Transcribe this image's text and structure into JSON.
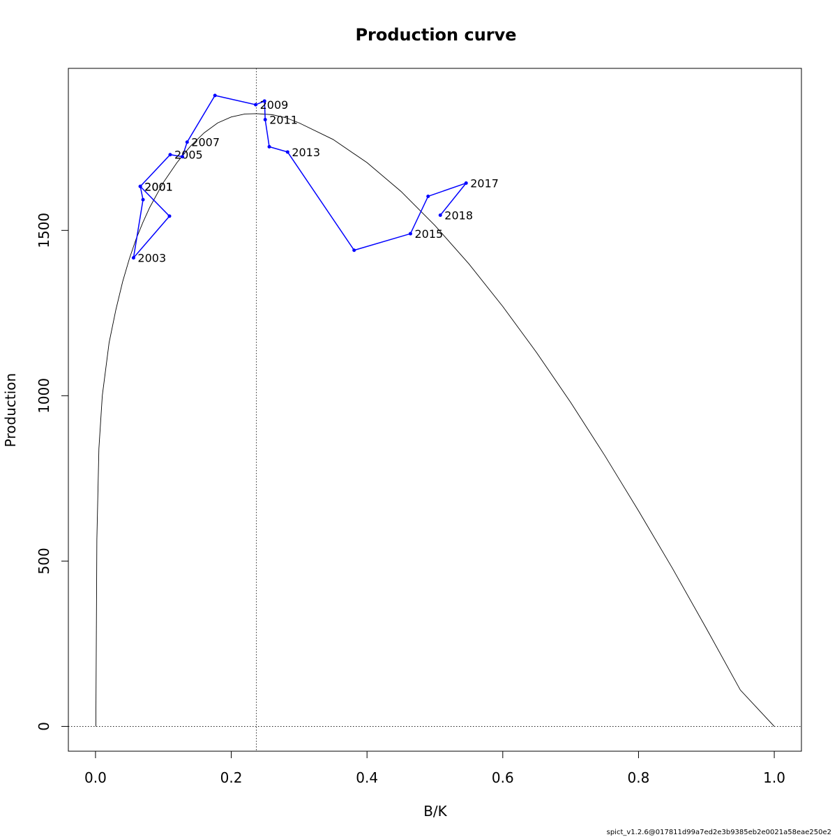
{
  "chart_data": {
    "type": "line",
    "title": "Production curve",
    "xlabel": "B/K",
    "ylabel": "Production",
    "xlim": [
      -0.04,
      1.04
    ],
    "ylim": [
      -75,
      1990
    ],
    "x_ticks": [
      {
        "value": 0.0,
        "label": "0.0"
      },
      {
        "value": 0.2,
        "label": "0.2"
      },
      {
        "value": 0.4,
        "label": "0.4"
      },
      {
        "value": 0.6,
        "label": "0.6"
      },
      {
        "value": 0.8,
        "label": "0.8"
      },
      {
        "value": 1.0,
        "label": "1.0"
      }
    ],
    "y_ticks": [
      {
        "value": 0,
        "label": "0"
      },
      {
        "value": 500,
        "label": "500"
      },
      {
        "value": 1000,
        "label": "1000"
      },
      {
        "value": 1500,
        "label": "1500"
      }
    ],
    "production_curve": {
      "color": "#000000",
      "peak_bk": 0.237,
      "peak_production": 1853,
      "x": [
        0.0005,
        0.002,
        0.005,
        0.01,
        0.02,
        0.03,
        0.04,
        0.05,
        0.06,
        0.07,
        0.08,
        0.1,
        0.12,
        0.14,
        0.16,
        0.18,
        0.2,
        0.22,
        0.237,
        0.26,
        0.28,
        0.3,
        0.35,
        0.4,
        0.45,
        0.5,
        0.55,
        0.6,
        0.65,
        0.7,
        0.75,
        0.8,
        0.85,
        0.9,
        0.95,
        1.0
      ],
      "y": [
        0,
        565,
        840,
        1000,
        1160,
        1260,
        1345,
        1415,
        1475,
        1525,
        1570,
        1645,
        1705,
        1755,
        1795,
        1825,
        1843,
        1852,
        1853,
        1850,
        1841,
        1825,
        1775,
        1705,
        1618,
        1515,
        1399,
        1270,
        1130,
        980,
        820,
        652,
        478,
        296,
        110,
        0
      ]
    },
    "trajectory": {
      "color": "#0000ff",
      "points": [
        {
          "label": "2001",
          "x": 0.066,
          "y": 1633
        },
        {
          "label": "",
          "x": 0.109,
          "y": 1543
        },
        {
          "label": "2003",
          "x": 0.056,
          "y": 1417
        },
        {
          "label": "",
          "x": 0.07,
          "y": 1593
        },
        {
          "label": "2001",
          "x": 0.066,
          "y": 1633
        },
        {
          "label": "2005",
          "x": 0.11,
          "y": 1729
        },
        {
          "label": "",
          "x": 0.128,
          "y": 1723
        },
        {
          "label": "2007",
          "x": 0.135,
          "y": 1767
        },
        {
          "label": "",
          "x": 0.176,
          "y": 1908
        },
        {
          "label": "2009",
          "x": 0.236,
          "y": 1880
        },
        {
          "label": "",
          "x": 0.249,
          "y": 1891
        },
        {
          "label": "2011",
          "x": 0.25,
          "y": 1835
        },
        {
          "label": "",
          "x": 0.256,
          "y": 1753
        },
        {
          "label": "2013",
          "x": 0.283,
          "y": 1737
        },
        {
          "label": "",
          "x": 0.381,
          "y": 1440
        },
        {
          "label": "2015",
          "x": 0.464,
          "y": 1490
        },
        {
          "label": "",
          "x": 0.49,
          "y": 1603
        },
        {
          "label": "2017",
          "x": 0.546,
          "y": 1643
        },
        {
          "label": "2018",
          "x": 0.508,
          "y": 1546
        }
      ]
    },
    "reference_lines": {
      "vertical_bk": 0.237,
      "horizontal_production": 0,
      "style": "dotted"
    },
    "grid": false,
    "legend": "none"
  },
  "footer": {
    "text": "spict_v1.2.6@017811d99a7ed2e3b9385eb2e0021a58eae250e2"
  }
}
